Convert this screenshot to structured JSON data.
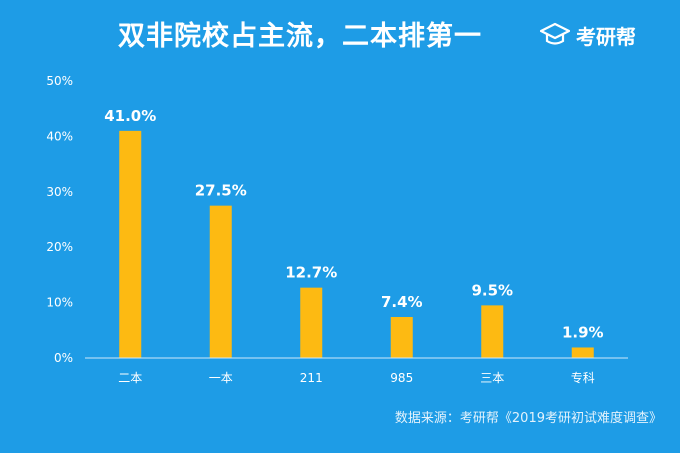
{
  "header": {
    "title": "双非院校占主流，二本排第一",
    "logo_text": "考研帮",
    "logo_icon": "graduation-cap-icon"
  },
  "colors": {
    "background": "#1e9ce6",
    "bar": "#fdba12",
    "axis": "#cfe9fa",
    "text": "#ffffff"
  },
  "chart_data": {
    "type": "bar",
    "title": "双非院校占主流，二本排第一",
    "categories": [
      "二本",
      "一本",
      "211",
      "985",
      "三本",
      "专科"
    ],
    "values": [
      41.0,
      27.5,
      12.7,
      7.4,
      9.5,
      1.9
    ],
    "value_labels": [
      "41.0%",
      "27.5%",
      "12.7%",
      "7.4%",
      "9.5%",
      "1.9%"
    ],
    "yticks": [
      "0%",
      "10%",
      "20%",
      "30%",
      "40%",
      "50%"
    ],
    "ylim": [
      0,
      50
    ],
    "grid": false,
    "xlabel": "",
    "ylabel": ""
  },
  "footer": {
    "source": "数据来源：考研帮《2019考研初试难度调查》"
  }
}
